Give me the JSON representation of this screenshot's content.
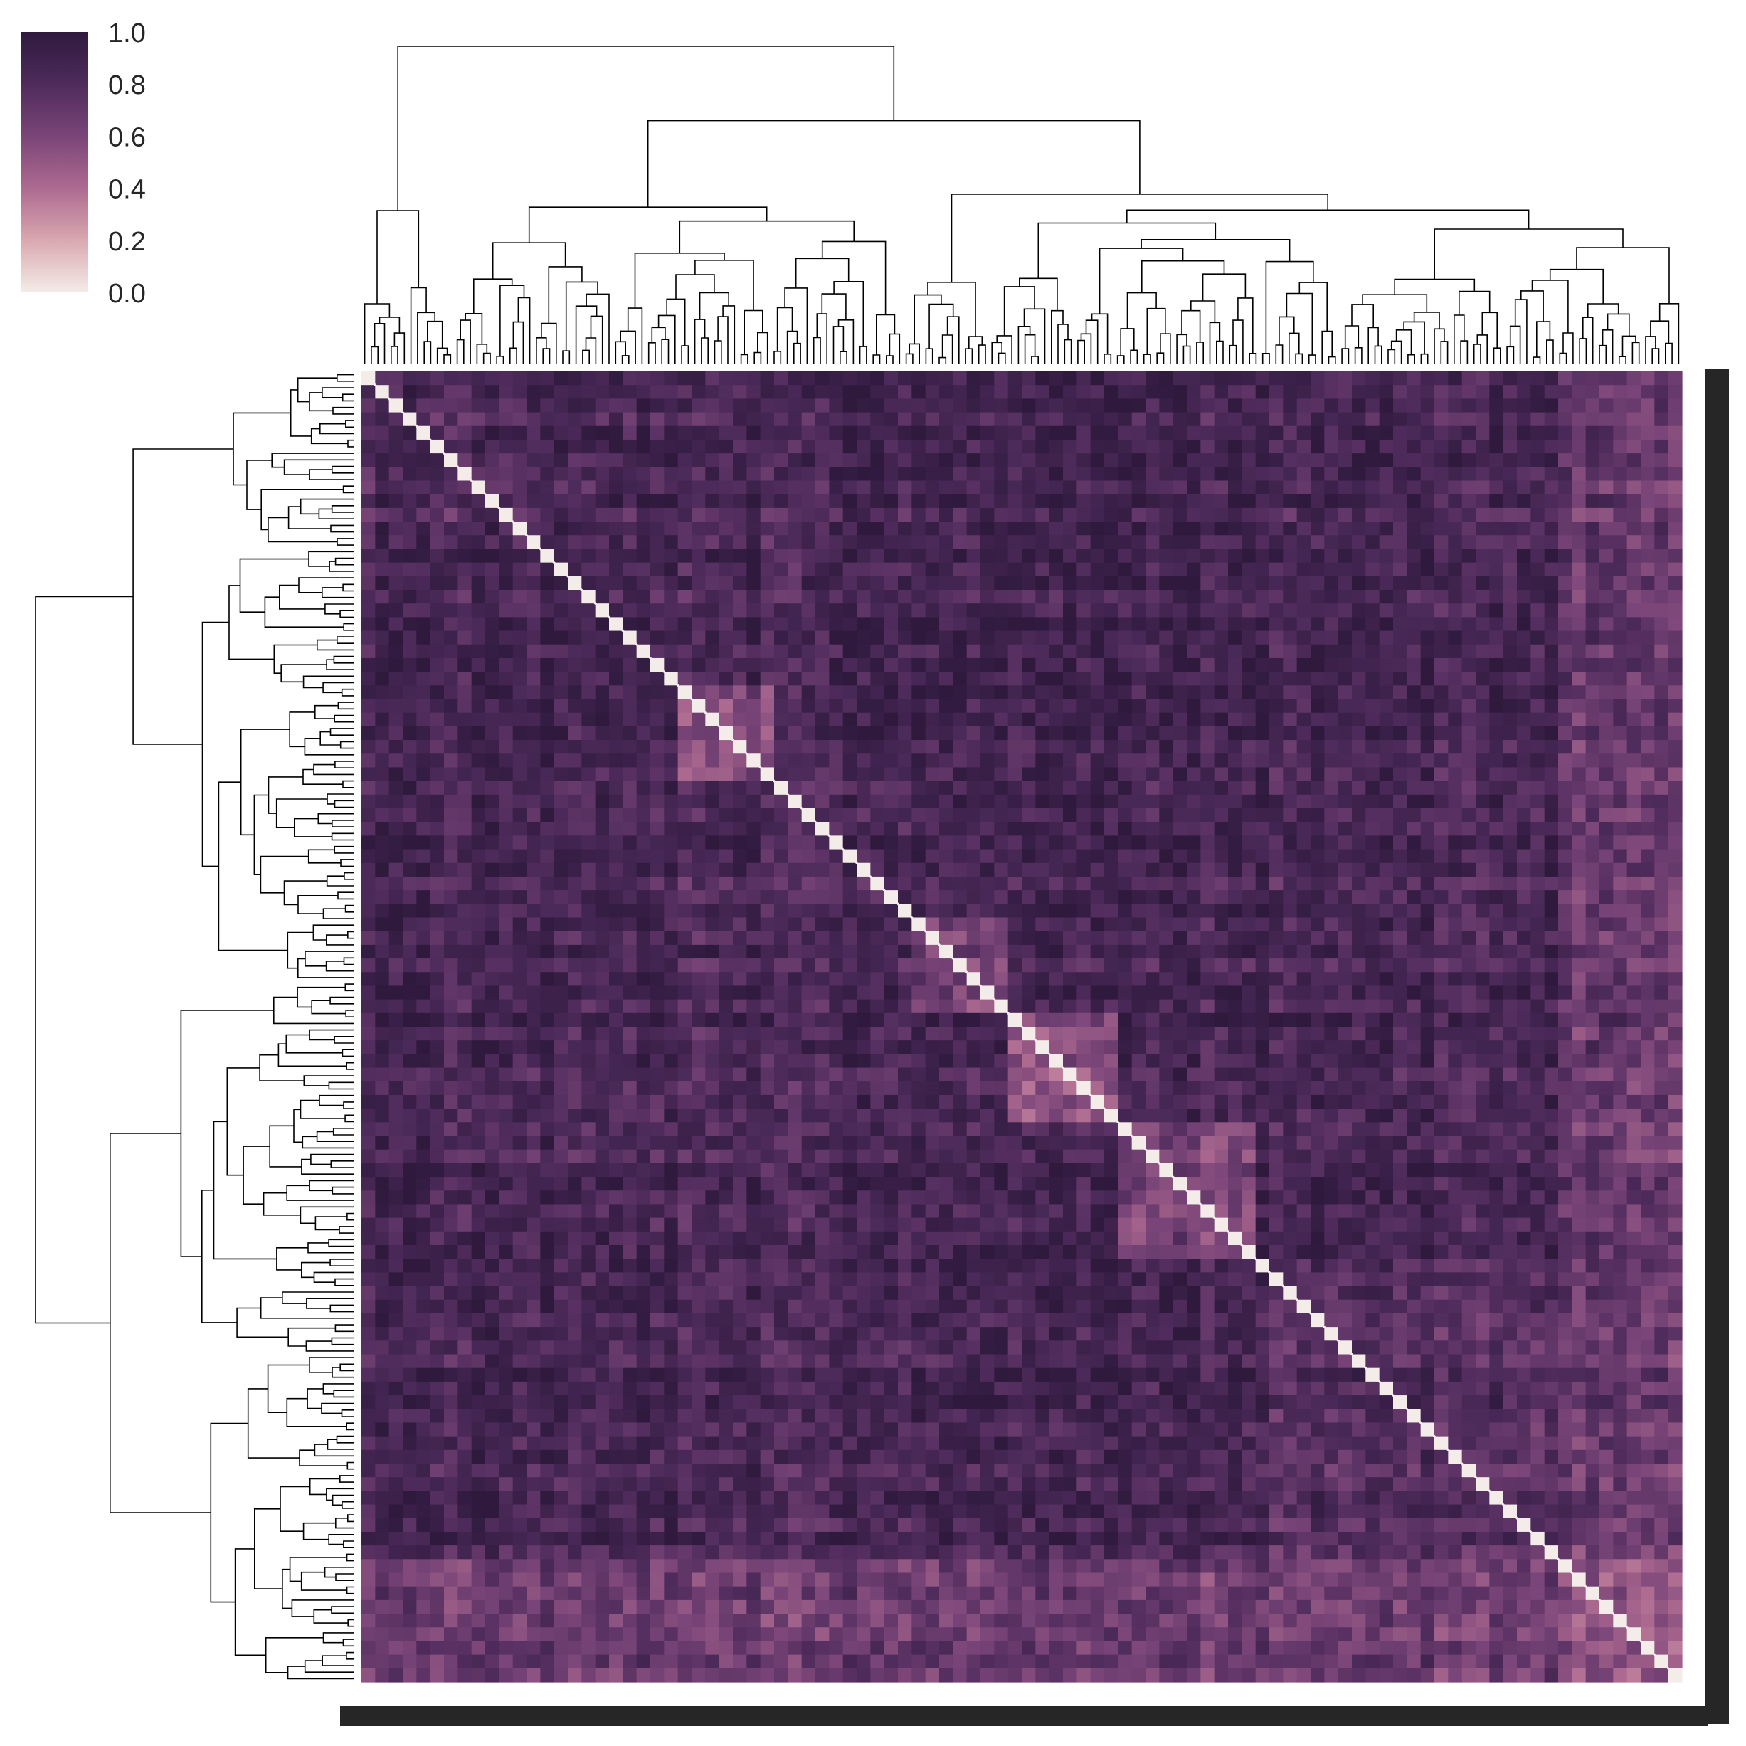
{
  "chart_data": {
    "type": "heatmap",
    "subtype": "clustermap",
    "title": "",
    "xlabel": "",
    "ylabel": "",
    "colormap": {
      "name": "cubehelix-purple",
      "stops": [
        "#f4ece8",
        "#d9a8b0",
        "#ad6a90",
        "#7a4578",
        "#4e2b5b",
        "#2f1a3e"
      ]
    },
    "colorbar": {
      "range": [
        0.0,
        1.0
      ],
      "ticks": [
        "0.0",
        "0.2",
        "0.4",
        "0.6",
        "0.8",
        "1.0"
      ]
    },
    "diagonal_value": 0.0,
    "typical_offdiagonal_value": 0.85,
    "clusters_along_diagonal": [
      {
        "from": 0.0,
        "to": 0.11,
        "mean_value": 0.8
      },
      {
        "from": 0.11,
        "to": 0.24,
        "mean_value": 0.85
      },
      {
        "from": 0.24,
        "to": 0.31,
        "mean_value": 0.55
      },
      {
        "from": 0.31,
        "to": 0.42,
        "mean_value": 0.82
      },
      {
        "from": 0.42,
        "to": 0.49,
        "mean_value": 0.6
      },
      {
        "from": 0.49,
        "to": 0.57,
        "mean_value": 0.5
      },
      {
        "from": 0.57,
        "to": 0.68,
        "mean_value": 0.6
      },
      {
        "from": 0.68,
        "to": 0.91,
        "mean_value": 0.78
      },
      {
        "from": 0.91,
        "to": 1.0,
        "mean_value": 0.5
      }
    ],
    "dendrograms": {
      "top": true,
      "left": true
    },
    "tick_labels": "dense overlapping numeric index labels on bottom and right axes"
  },
  "colors": {
    "line": "#000000",
    "text": "#262626",
    "tick_label_band": "#262626",
    "background": "#ffffff"
  }
}
